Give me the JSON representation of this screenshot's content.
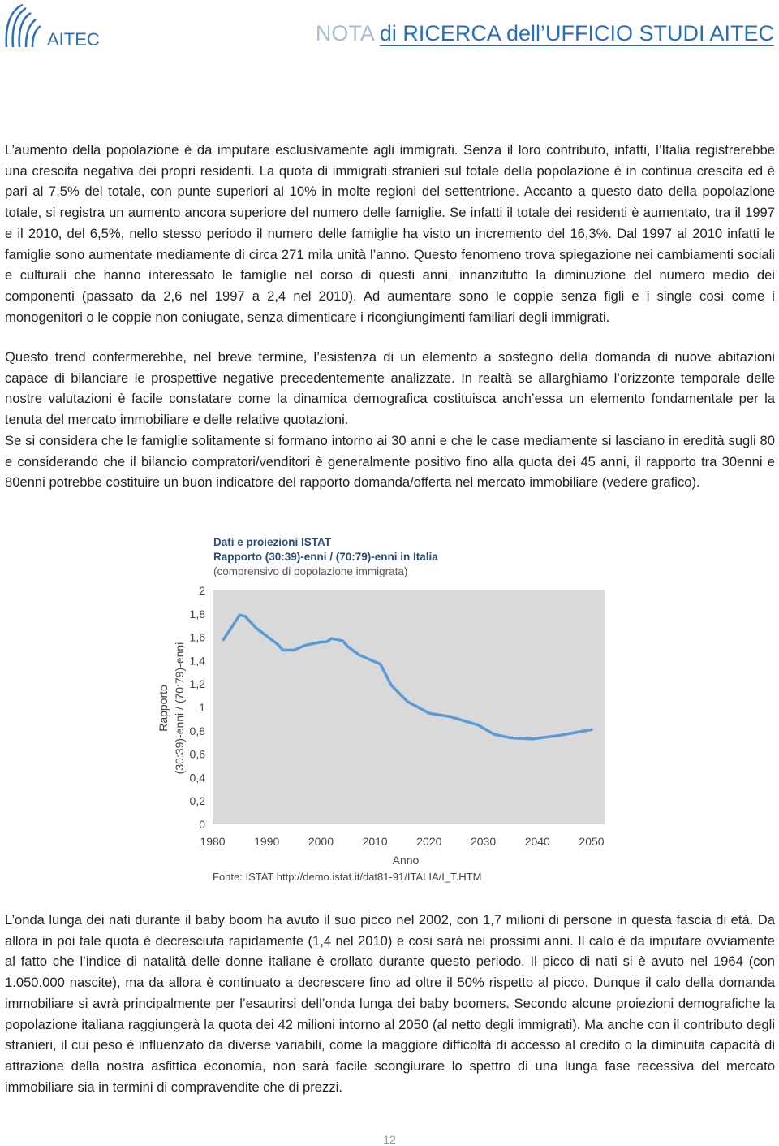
{
  "header": {
    "logo": "AITEC",
    "title_prefix": "NOTA",
    "title": "di RICERCA dell’UFFICIO STUDI AITEC"
  },
  "paragraphs": [
    "L’aumento della popolazione è da imputare esclusivamente agli immigrati. Senza il loro contributo, infatti, l’Italia registrerebbe una crescita negativa dei propri residenti. La quota di immigrati stranieri sul totale della popolazione è in continua crescita  ed è pari al 7,5% del totale, con punte superiori al 10% in molte regioni del settentrione. Accanto a questo dato della popolazione totale, si registra un aumento ancora superiore del numero delle famiglie. Se infatti il totale dei residenti è aumentato, tra il 1997 e il 2010, del 6,5%, nello stesso periodo il numero delle famiglie ha visto un incremento del 16,3%. Dal 1997 al 2010 infatti le famiglie sono aumentate mediamente di circa 271 mila unità l’anno. Questo fenomeno trova spiegazione nei cambiamenti sociali e culturali che hanno interessato le famiglie nel corso di questi anni, innanzitutto la diminuzione del numero medio dei componenti (passato da 2,6 nel 1997 a 2,4 nel 2010). Ad aumentare sono le coppie senza figli e i single così come i monogenitori o le coppie non coniugate, senza dimenticare i ricongiungimenti familiari degli immigrati.",
    "Questo trend confermerebbe, nel breve termine, l’esistenza di un elemento a sostegno della domanda di nuove abitazioni capace di bilanciare le prospettive negative precedentemente analizzate. In realtà se allarghiamo l’orizzonte temporale delle nostre valutazioni è facile constatare come la dinamica demografica costituisca anch’essa un elemento fondamentale per la tenuta del mercato immobiliare e delle relative quotazioni.",
    "Se si considera che le famiglie solitamente si formano intorno ai 30 anni e che le case mediamente si lasciano in eredità sugli 80 e considerando che  il bilancio compratori/venditori è generalmente positivo fino alla quota dei 45 anni, il rapporto tra 30enni e 80enni potrebbe costituire un buon indicatore del rapporto domanda/offerta nel mercato immobiliare (vedere grafico)."
  ],
  "chart_data": {
    "type": "line",
    "title": "Dati e proiezioni ISTAT",
    "subtitle": "Rapporto (30:39)-enni / (70:79)-enni in Italia",
    "note": "(comprensivo di popolazione immigrata)",
    "ylabel": [
      "Rapporto",
      "(30:39)-enni / (70:79)-enni"
    ],
    "xlabel": "Anno",
    "source": "Fonte: ISTAT http://demo.istat.it/dat81-91/ITALIA/I_T.HTM",
    "x": [
      1982,
      1984,
      1985,
      1986,
      1988,
      1990,
      1992,
      1993,
      1995,
      1997,
      2000,
      2001,
      2002,
      2004,
      2005,
      2007,
      2011,
      2013,
      2016,
      2020,
      2024,
      2029,
      2032,
      2035,
      2039,
      2044,
      2050
    ],
    "values": [
      1.58,
      1.72,
      1.79,
      1.78,
      1.68,
      1.61,
      1.54,
      1.49,
      1.49,
      1.53,
      1.56,
      1.56,
      1.59,
      1.57,
      1.52,
      1.45,
      1.37,
      1.19,
      1.05,
      0.95,
      0.92,
      0.85,
      0.77,
      0.74,
      0.73,
      0.76,
      0.81
    ],
    "color": "#5b9bd5",
    "plot_background": "#d9d9d9",
    "xlim": [
      1980,
      2050
    ],
    "xticks": [
      1980,
      1990,
      2000,
      2010,
      2020,
      2030,
      2040,
      2050
    ],
    "ylim": [
      0,
      2
    ],
    "yticks": [
      0,
      {
        "value": 0.2,
        "label": "0,2"
      },
      {
        "value": 0.4,
        "label": "0,4"
      },
      {
        "value": 0.6,
        "label": "0,6"
      },
      {
        "value": 0.8,
        "label": "0,8"
      },
      1,
      {
        "value": 1.2,
        "label": "1,2"
      },
      {
        "value": 1.4,
        "label": "1,4"
      },
      {
        "value": 1.6,
        "label": "1,6"
      },
      {
        "value": 1.8,
        "label": "1,8"
      },
      2
    ],
    "grid": false
  },
  "paragraphs_after": [
    "L’onda lunga dei nati durante il baby boom ha avuto il suo picco nel 2002, con 1,7 milioni di persone in questa fascia di età. Da allora in poi tale quota è decresciuta rapidamente (1,4 nel 2010) e cosi sarà nei prossimi anni. Il calo è da imputare ovviamente al fatto che l’indice di natalità delle donne italiane è crollato durante questo periodo. Il picco di nati si è avuto nel 1964 (con 1.050.000 nascite), ma da allora è continuato a decrescere fino ad oltre il 50% rispetto al picco. Dunque il calo della domanda immobiliare si avrà principalmente per l’esaurirsi dell’onda lunga dei baby boomers. Secondo alcune proiezioni demografiche la popolazione italiana raggiungerà la quota dei 42 milioni intorno al 2050 (al netto degli immigrati). Ma anche con il contributo degli stranieri, il cui peso è influenzato da diverse variabili, come la maggiore difficoltà di accesso al credito o la diminuita capacità di attrazione della nostra asfittica economia, non sarà facile scongiurare lo spettro di una lunga fase recessiva del mercato immobiliare sia in termini di compravendite che di prezzi."
  ],
  "page_number": "12"
}
